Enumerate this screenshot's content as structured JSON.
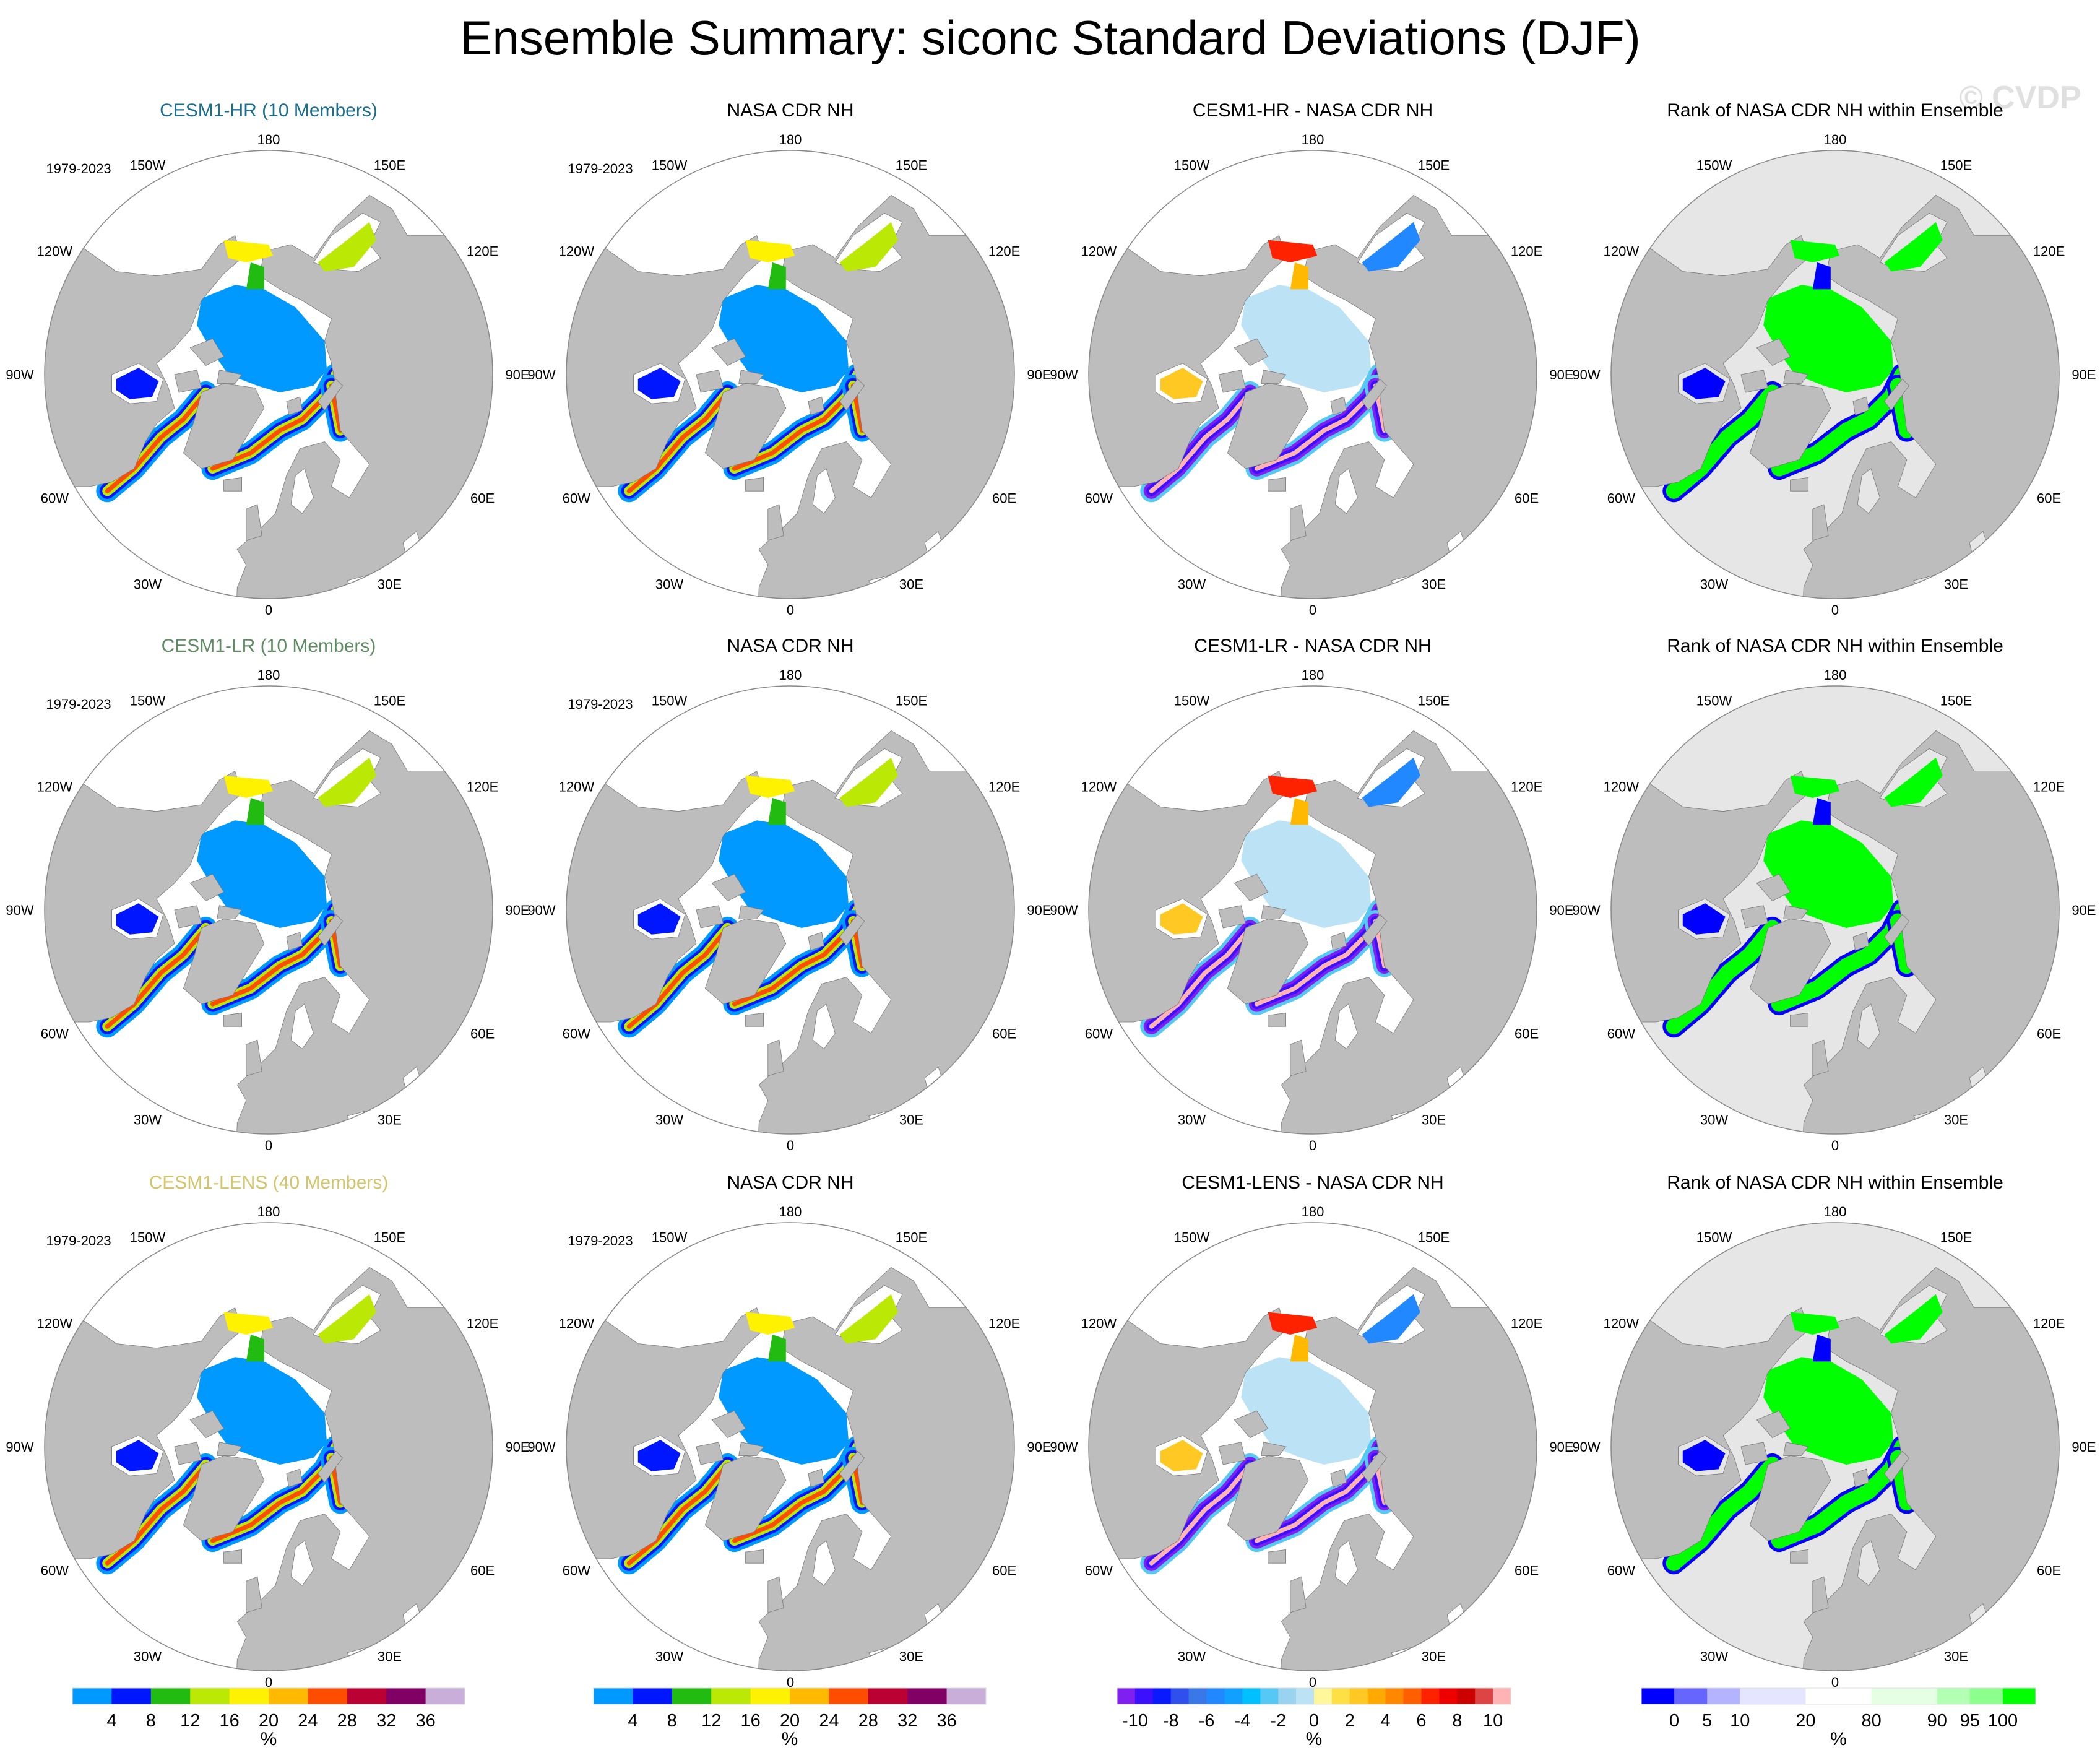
{
  "title": "Ensemble Summary: siconc Standard Deviations (DJF)",
  "watermark": "© CVDP",
  "period": "1979-2023",
  "lon_labels": [
    "180",
    "150E",
    "120E",
    "90E",
    "60E",
    "30E",
    "0",
    "30W",
    "60W",
    "90W",
    "120W",
    "150W"
  ],
  "lon_values": [
    180,
    150,
    120,
    90,
    60,
    30,
    0,
    -30,
    -60,
    -90,
    -120,
    -150
  ],
  "colors": {
    "land": "#bdbdbd",
    "ocean": "#ffffff",
    "rank_ocean": "#e6e6e6",
    "outline": "#888888"
  },
  "rows": [
    {
      "panels": [
        {
          "title": "CESM1-HR (10 Members)",
          "title_color": "#1b6e8f",
          "type": "std",
          "show_period": true
        },
        {
          "title": "NASA CDR NH",
          "title_color": "#000000",
          "type": "std",
          "show_period": true
        },
        {
          "title": "CESM1-HR - NASA CDR NH",
          "title_color": "#000000",
          "type": "diff",
          "show_period": false
        },
        {
          "title": "Rank of NASA CDR NH within Ensemble",
          "title_color": "#000000",
          "type": "rank",
          "show_period": false
        }
      ]
    },
    {
      "panels": [
        {
          "title": "CESM1-LR (10 Members)",
          "title_color": "#5f8c62",
          "type": "std",
          "show_period": true
        },
        {
          "title": "NASA CDR NH",
          "title_color": "#000000",
          "type": "std",
          "show_period": true
        },
        {
          "title": "CESM1-LR - NASA CDR NH",
          "title_color": "#000000",
          "type": "diff",
          "show_period": false
        },
        {
          "title": "Rank of NASA CDR NH within Ensemble",
          "title_color": "#000000",
          "type": "rank",
          "show_period": false
        }
      ]
    },
    {
      "panels": [
        {
          "title": "CESM1-LENS (40 Members)",
          "title_color": "#d2c56a",
          "type": "std",
          "show_period": true
        },
        {
          "title": "NASA CDR NH",
          "title_color": "#000000",
          "type": "std",
          "show_period": true
        },
        {
          "title": "CESM1-LENS - NASA CDR NH",
          "title_color": "#000000",
          "type": "diff",
          "show_period": false
        },
        {
          "title": "Rank of NASA CDR NH within Ensemble",
          "title_color": "#000000",
          "type": "rank",
          "show_period": false
        }
      ]
    }
  ],
  "colorbars": [
    {
      "unit": "%",
      "levels": [
        4,
        8,
        12,
        16,
        20,
        24,
        28,
        32,
        36
      ],
      "tick_labels": [
        "4",
        "8",
        "12",
        "16",
        "20",
        "24",
        "28",
        "32",
        "36"
      ],
      "colors": [
        "#0099ff",
        "#0016ff",
        "#22bb11",
        "#bbe805",
        "#fff200",
        "#ffb900",
        "#ff4d00",
        "#bb0033",
        "#800066",
        "#c8aed8"
      ]
    },
    {
      "unit": "%",
      "levels": [
        4,
        8,
        12,
        16,
        20,
        24,
        28,
        32,
        36
      ],
      "tick_labels": [
        "4",
        "8",
        "12",
        "16",
        "20",
        "24",
        "28",
        "32",
        "36"
      ],
      "colors": [
        "#0099ff",
        "#0016ff",
        "#22bb11",
        "#bbe805",
        "#fff200",
        "#ffb900",
        "#ff4d00",
        "#bb0033",
        "#800066",
        "#c8aed8"
      ]
    },
    {
      "unit": "%",
      "levels": [
        -10,
        -9,
        -8,
        -7,
        -6,
        -5,
        -4,
        -3,
        -2,
        -1,
        0,
        1,
        2,
        3,
        4,
        5,
        6,
        7,
        8,
        9,
        10
      ],
      "tick_labels": [
        "-10",
        "",
        "-8",
        "",
        "-6",
        "",
        "-4",
        "",
        "-2",
        "",
        "0",
        "",
        "2",
        "",
        "4",
        "",
        "6",
        "",
        "8",
        "",
        "10"
      ],
      "colors": [
        "#8020f0",
        "#3a10ff",
        "#0a1aff",
        "#3050ee",
        "#3a78e8",
        "#2288ff",
        "#11a0ff",
        "#00c0ff",
        "#55c8f5",
        "#99d3f0",
        "#bbe3f5",
        "#fff799",
        "#ffe044",
        "#ffc822",
        "#ffaa00",
        "#ff8800",
        "#ff5f00",
        "#ff2200",
        "#ee0000",
        "#cc0000",
        "#dd4444",
        "#ffb3b3"
      ]
    },
    {
      "unit": "%",
      "levels": [
        0,
        5,
        10,
        20,
        80,
        90,
        95,
        100
      ],
      "tick_labels": [
        "0",
        "5",
        "10",
        "20",
        "80",
        "90",
        "95",
        "100"
      ],
      "colors": [
        "#0000ff",
        "#6666ff",
        "#b3b3ff",
        "#e5e5ff",
        "#ffffff",
        "#e5ffe5",
        "#b3ffb3",
        "#8cff8c",
        "#00ff00"
      ]
    }
  ]
}
